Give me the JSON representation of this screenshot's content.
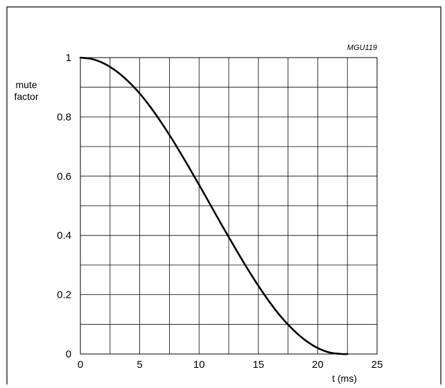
{
  "chart_data": {
    "type": "line",
    "title": "",
    "figure_code": "MGU119",
    "xlabel": "t (ms)",
    "ylabel_lines": [
      "mute",
      "factor"
    ],
    "xlim": [
      0,
      25
    ],
    "ylim": [
      0,
      1
    ],
    "x_ticks": [
      0,
      5,
      10,
      15,
      20,
      25
    ],
    "x_tick_labels": [
      "0",
      "5",
      "10",
      "15",
      "20",
      "25"
    ],
    "y_ticks": [
      0,
      0.2,
      0.4,
      0.6,
      0.8,
      1
    ],
    "y_tick_labels": [
      "0",
      "0.2",
      "0.4",
      "0.6",
      "0.8",
      "1"
    ],
    "x_grid_step": 2.5,
    "y_grid_step": 0.1,
    "grid": true,
    "legend": "none",
    "line_color": "#000000",
    "grid_color": "#000000",
    "series": [
      {
        "x": [
          0,
          1,
          2,
          3,
          4,
          5,
          6,
          7,
          8,
          9,
          10,
          11,
          12,
          13,
          14,
          15,
          16,
          17,
          18,
          19,
          20,
          21,
          22,
          22.5
        ],
        "values": [
          1.0,
          0.995,
          0.98,
          0.955,
          0.921,
          0.879,
          0.828,
          0.77,
          0.707,
          0.64,
          0.571,
          0.5,
          0.429,
          0.36,
          0.293,
          0.23,
          0.172,
          0.121,
          0.079,
          0.045,
          0.02,
          0.005,
          0.0,
          0.0
        ]
      }
    ]
  }
}
